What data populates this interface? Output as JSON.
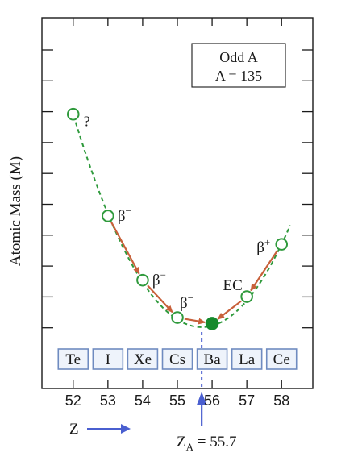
{
  "chart_data": {
    "type": "scatter",
    "ylabel": "Atomic Mass (M)",
    "xlabel": "Z",
    "legend_box": {
      "line1": "Odd A",
      "line2": "A = 135"
    },
    "x_ticks": [
      "52",
      "53",
      "54",
      "55",
      "56",
      "57",
      "58"
    ],
    "elements": [
      {
        "symbol": "Te",
        "z": 52
      },
      {
        "symbol": "I",
        "z": 53
      },
      {
        "symbol": "Xe",
        "z": 54
      },
      {
        "symbol": "Cs",
        "z": 55
      },
      {
        "symbol": "Ba",
        "z": 56
      },
      {
        "symbol": "La",
        "z": 57
      },
      {
        "symbol": "Ce",
        "z": 58
      }
    ],
    "points": [
      {
        "z": 52,
        "mass": 7.0,
        "stable": false
      },
      {
        "z": 53,
        "mass": 3.6,
        "stable": false
      },
      {
        "z": 54,
        "mass": 1.45,
        "stable": false
      },
      {
        "z": 55,
        "mass": 0.2,
        "stable": false
      },
      {
        "z": 56,
        "mass": 0.0,
        "stable": true
      },
      {
        "z": 57,
        "mass": 0.9,
        "stable": false
      },
      {
        "z": 58,
        "mass": 2.65,
        "stable": false
      }
    ],
    "parabola": {
      "vertex_z": 55.7,
      "vertex_mass": -0.12,
      "x_range": [
        51.95,
        58.25
      ]
    },
    "decays": [
      {
        "from": 53,
        "to": 54,
        "label": "β",
        "sign": "−",
        "label_side": "right"
      },
      {
        "from": 54,
        "to": 55,
        "label": "β",
        "sign": "−",
        "label_side": "right"
      },
      {
        "from": 55,
        "to": 56,
        "label": "β",
        "sign": "−",
        "label_side": "above"
      },
      {
        "from": 57,
        "to": 56,
        "label": "EC",
        "sign": "",
        "label_side": "above"
      },
      {
        "from": 58,
        "to": 57,
        "label": "β",
        "sign": "+",
        "label_side": "left"
      }
    ],
    "unknown_marker": "?",
    "za_label": {
      "main": "Z",
      "sub": "A",
      "rest": " = 55.7"
    },
    "za_value": 55.7,
    "xlim": [
      51.1,
      58.9
    ],
    "ylim": [
      -0.15,
      10.2
    ],
    "colors": {
      "curve": "#2f9a3c",
      "point_outline": "#2f9a3c",
      "stable_fill": "#168a2c",
      "arrow": "#c8603a",
      "za_line": "#4a5fd0",
      "grid_tick": "#1a1a1a",
      "element_box": "#6f8bc0",
      "element_fill": "#eef3fb"
    }
  }
}
